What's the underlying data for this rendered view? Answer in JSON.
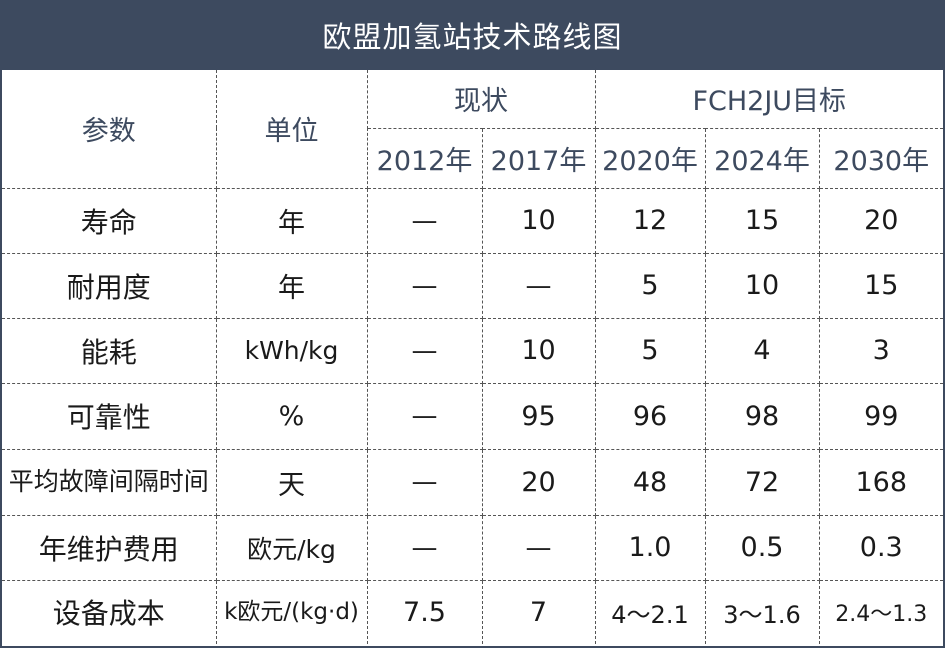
{
  "title": "欧盟加氢站技术路线图",
  "header": {
    "param": "参数",
    "unit": "单位",
    "current_group": "现状",
    "target_group": "FCH2JU目标",
    "years": [
      "2012年",
      "2017年",
      "2020年",
      "2024年",
      "2030年"
    ]
  },
  "rows": [
    {
      "param": "寿命",
      "unit": "年",
      "values": [
        "—",
        "10",
        "12",
        "15",
        "20"
      ]
    },
    {
      "param": "耐用度",
      "unit": "年",
      "values": [
        "—",
        "—",
        "5",
        "10",
        "15"
      ]
    },
    {
      "param": "能耗",
      "unit": "kWh/kg",
      "values": [
        "—",
        "10",
        "5",
        "4",
        "3"
      ]
    },
    {
      "param": "可靠性",
      "unit": "%",
      "values": [
        "—",
        "95",
        "96",
        "98",
        "99"
      ]
    },
    {
      "param": "平均故障间隔时间",
      "unit": "天",
      "values": [
        "—",
        "20",
        "48",
        "72",
        "168"
      ]
    },
    {
      "param": "年维护费用",
      "unit": "欧元/kg",
      "values": [
        "—",
        "—",
        "1.0",
        "0.5",
        "0.3"
      ]
    },
    {
      "param": "设备成本",
      "unit": "k欧元/(kg·d)",
      "values": [
        "7.5",
        "7",
        "4～2.1",
        "3～1.6",
        "2.4～1.3"
      ]
    }
  ]
}
